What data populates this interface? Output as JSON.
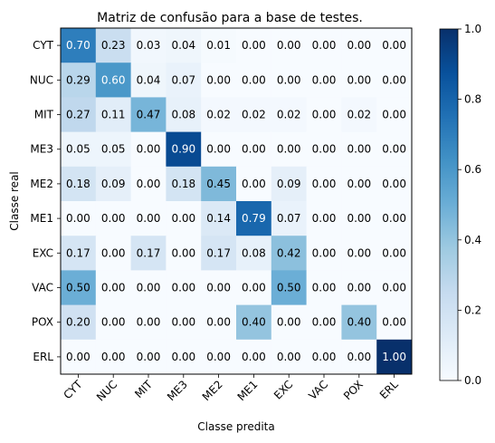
{
  "chart_data": {
    "type": "heatmap",
    "title": "Matriz de confusão para a base de testes.",
    "xlabel": "Classe predita",
    "ylabel": "Classe real",
    "x_categories": [
      "CYT",
      "NUC",
      "MIT",
      "ME3",
      "ME2",
      "ME1",
      "EXC",
      "VAC",
      "POX",
      "ERL"
    ],
    "y_categories": [
      "CYT",
      "NUC",
      "MIT",
      "ME3",
      "ME2",
      "ME1",
      "EXC",
      "VAC",
      "POX",
      "ERL"
    ],
    "values": [
      [
        0.7,
        0.23,
        0.03,
        0.04,
        0.01,
        0.0,
        0.0,
        0.0,
        0.0,
        0.0
      ],
      [
        0.29,
        0.6,
        0.04,
        0.07,
        0.0,
        0.0,
        0.0,
        0.0,
        0.0,
        0.0
      ],
      [
        0.27,
        0.11,
        0.47,
        0.08,
        0.02,
        0.02,
        0.02,
        0.0,
        0.02,
        0.0
      ],
      [
        0.05,
        0.05,
        0.0,
        0.9,
        0.0,
        0.0,
        0.0,
        0.0,
        0.0,
        0.0
      ],
      [
        0.18,
        0.09,
        0.0,
        0.18,
        0.45,
        0.0,
        0.09,
        0.0,
        0.0,
        0.0
      ],
      [
        0.0,
        0.0,
        0.0,
        0.0,
        0.14,
        0.79,
        0.07,
        0.0,
        0.0,
        0.0
      ],
      [
        0.17,
        0.0,
        0.17,
        0.0,
        0.17,
        0.08,
        0.42,
        0.0,
        0.0,
        0.0
      ],
      [
        0.5,
        0.0,
        0.0,
        0.0,
        0.0,
        0.0,
        0.5,
        0.0,
        0.0,
        0.0
      ],
      [
        0.2,
        0.0,
        0.0,
        0.0,
        0.0,
        0.4,
        0.0,
        0.0,
        0.4,
        0.0
      ],
      [
        0.0,
        0.0,
        0.0,
        0.0,
        0.0,
        0.0,
        0.0,
        0.0,
        0.0,
        1.0
      ]
    ],
    "colormap": "Blues",
    "colorbar": {
      "range": [
        0.0,
        1.0
      ],
      "ticks": [
        0.0,
        0.2,
        0.4,
        0.6,
        0.8,
        1.0
      ],
      "tick_labels": [
        "0.0",
        "0.2",
        "0.4",
        "0.6",
        "0.8",
        "1.0"
      ]
    },
    "grid": false
  }
}
